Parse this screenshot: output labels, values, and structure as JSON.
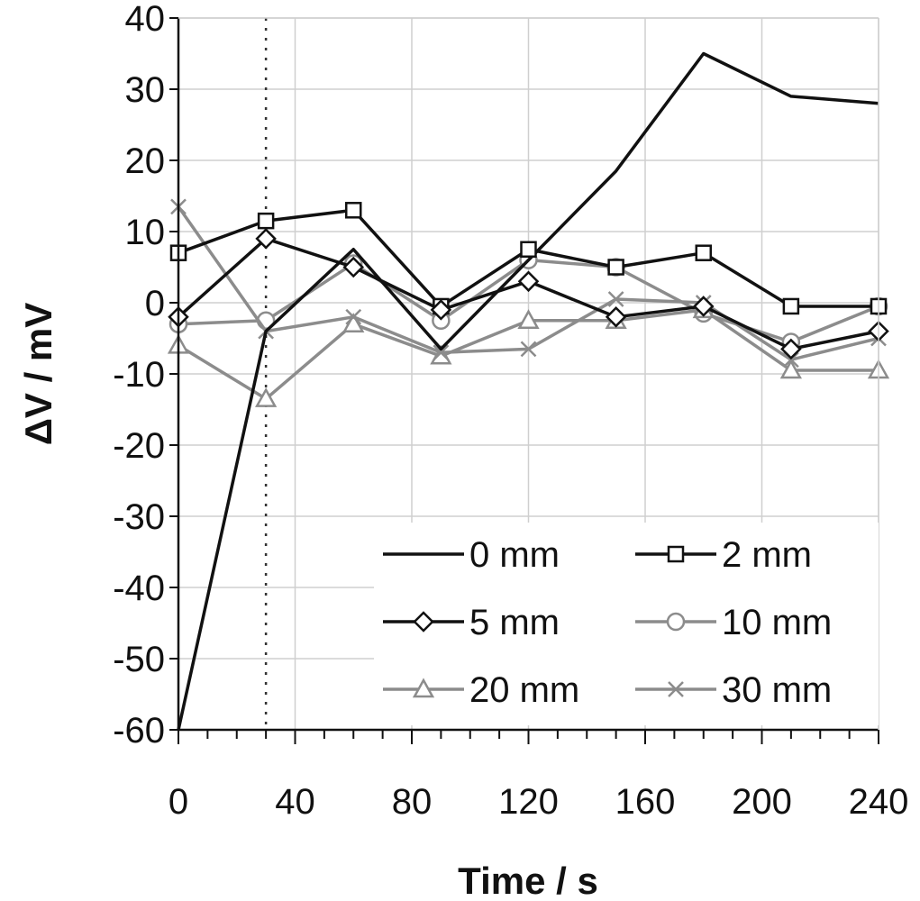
{
  "chart_data": {
    "type": "line",
    "title": "",
    "xlabel": "Time / s",
    "ylabel": "ΔV / mV",
    "xlim": [
      0,
      240
    ],
    "ylim": [
      -60,
      40
    ],
    "x_ticks": [
      "0",
      "40",
      "80",
      "120",
      "160",
      "200",
      "240"
    ],
    "x_tick_values": [
      0,
      40,
      80,
      120,
      160,
      200,
      240
    ],
    "y_ticks": [
      "40",
      "30",
      "20",
      "10",
      "0",
      "-10",
      "-20",
      "-30",
      "-40",
      "-50",
      "-60"
    ],
    "y_tick_values": [
      40,
      30,
      20,
      10,
      0,
      -10,
      -20,
      -30,
      -40,
      -50,
      -60
    ],
    "grid": true,
    "legend_position": "bottom-right",
    "reference_line": {
      "x": 30,
      "style": "dotted"
    },
    "x": [
      0,
      30,
      60,
      90,
      120,
      150,
      180,
      210,
      240
    ],
    "series": [
      {
        "name": "0 mm",
        "color": "#111111",
        "marker": "none",
        "values": [
          -60,
          -4,
          7.5,
          -6.5,
          6,
          18.5,
          35,
          29,
          28
        ]
      },
      {
        "name": "2 mm",
        "color": "#111111",
        "marker": "square",
        "values": [
          7,
          11.5,
          13,
          -0.5,
          7.5,
          5,
          7,
          -0.5,
          -0.5
        ]
      },
      {
        "name": "5 mm",
        "color": "#111111",
        "marker": "diamond",
        "values": [
          -2,
          9,
          5,
          -1,
          3,
          -2,
          -0.5,
          -6.5,
          -4
        ]
      },
      {
        "name": "10 mm",
        "color": "#8c8c8c",
        "marker": "circle",
        "values": [
          -3,
          -2.5,
          5.5,
          -2.5,
          6,
          5,
          -1.5,
          -5.5,
          -0.5
        ]
      },
      {
        "name": "20 mm",
        "color": "#8c8c8c",
        "marker": "triangle",
        "values": [
          -6,
          -13.5,
          -3,
          -7.5,
          -2.5,
          -2.5,
          -1,
          -9.5,
          -9.5
        ]
      },
      {
        "name": "30 mm",
        "color": "#8c8c8c",
        "marker": "x",
        "values": [
          13.5,
          -4,
          -2,
          -7,
          -6.5,
          0.5,
          0,
          -8,
          -5
        ]
      }
    ]
  }
}
